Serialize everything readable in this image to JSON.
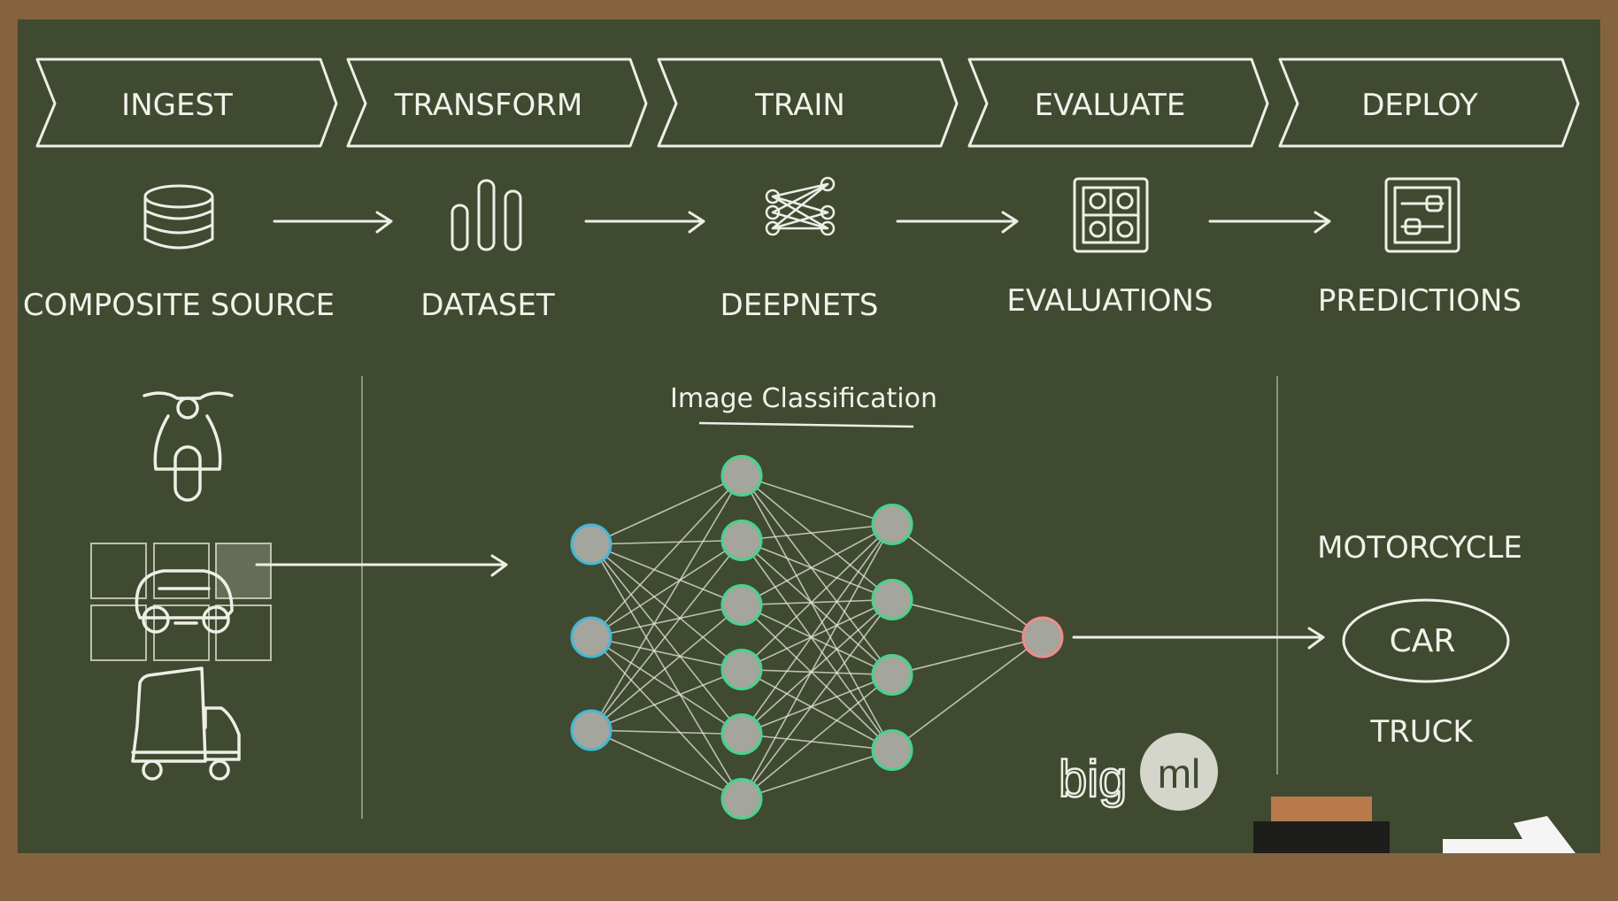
{
  "colors": {
    "frame": "#85633f",
    "board": "#3f4a30",
    "chalk": "#f2f2ea",
    "node_fill": "#a4a59d",
    "input_ring": "#43b8d6",
    "hidden_ring": "#46d38d",
    "output_ring": "#f28a8a",
    "eraser_top": "#b87a4d",
    "eraser_bottom": "#1d1d1b"
  },
  "pipeline": {
    "stages": [
      "INGEST",
      "TRANSFORM",
      "TRAIN",
      "EVALUATE",
      "DEPLOY"
    ],
    "resources": [
      {
        "label": "COMPOSITE SOURCE",
        "icon": "database-icon"
      },
      {
        "label": "DATASET",
        "icon": "bar-chart-icon"
      },
      {
        "label": "DEEPNETS",
        "icon": "network-icon"
      },
      {
        "label": "EVALUATIONS",
        "icon": "grid-icon"
      },
      {
        "label": "PREDICTIONS",
        "icon": "sliders-icon"
      }
    ]
  },
  "diagram": {
    "title": "Image Classification",
    "inputs": [
      "motorcycle-icon",
      "car-icon",
      "truck-icon"
    ],
    "layers": [
      3,
      6,
      4,
      1
    ]
  },
  "outputs": {
    "classes": [
      "MOTORCYCLE",
      "CAR",
      "TRUCK"
    ],
    "selected": "CAR"
  },
  "logo": {
    "text_left": "big",
    "text_right": "ml"
  }
}
